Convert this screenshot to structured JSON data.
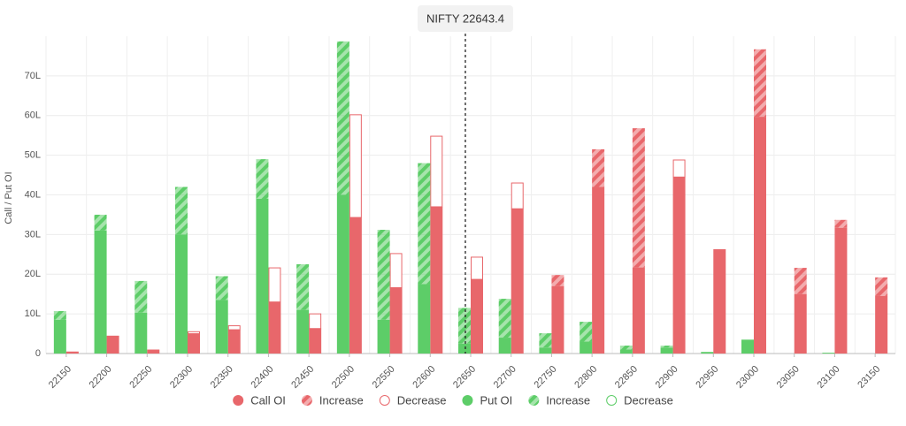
{
  "chart_data": {
    "type": "bar",
    "y_label": "Call / Put OI",
    "annotation": {
      "label": "NIFTY 22643.4",
      "value": 22643.4
    },
    "categories": [
      22150,
      22200,
      22250,
      22300,
      22350,
      22400,
      22450,
      22500,
      22550,
      22600,
      22650,
      22700,
      22750,
      22800,
      22850,
      22900,
      22950,
      23000,
      23050,
      23100,
      23150
    ],
    "series": [
      {
        "name": "Call OI",
        "stack": "call",
        "style": "solid",
        "color": "#e8676b",
        "values": [
          0.5,
          4.5,
          1,
          5,
          6,
          13,
          6.3,
          34.3,
          16.6,
          37,
          18.7,
          36.5,
          17,
          42,
          21.7,
          44.5,
          26.3,
          59.7,
          15,
          31.7,
          14.5
        ]
      },
      {
        "name": "Increase",
        "stack": "call",
        "style": "hatched",
        "color": "#e8676b",
        "values": [
          0,
          0,
          0,
          0,
          0,
          0,
          0,
          0,
          0,
          0,
          0,
          0,
          2.8,
          9.5,
          35.1,
          0,
          0,
          17,
          6.6,
          2,
          4.7
        ]
      },
      {
        "name": "Decrease",
        "stack": "call",
        "style": "outline",
        "color": "#e8676b",
        "values": [
          0,
          0,
          0,
          0.5,
          1,
          8.6,
          3.7,
          25.9,
          8.6,
          17.8,
          5.6,
          6.5,
          0,
          0,
          0,
          4.3,
          0,
          0,
          0,
          0,
          0
        ]
      },
      {
        "name": "Put OI",
        "stack": "put",
        "style": "solid",
        "color": "#5dcd68",
        "values": [
          8.5,
          31,
          10.3,
          30,
          13.5,
          39,
          11,
          40,
          8.5,
          17.5,
          2.5,
          4,
          1.5,
          3,
          1,
          1.5,
          0.4,
          3.5,
          0,
          0.2,
          0
        ]
      },
      {
        "name": "Increase",
        "stack": "put",
        "style": "hatched",
        "color": "#5dcd68",
        "values": [
          2.2,
          4,
          8,
          12,
          6,
          10,
          11.5,
          38.7,
          22.7,
          30.5,
          9,
          9.8,
          3.6,
          5,
          1,
          0.5,
          0,
          0,
          0,
          0,
          0
        ]
      },
      {
        "name": "Decrease",
        "stack": "put",
        "style": "outline",
        "color": "#5dcd68",
        "values": [
          0,
          0,
          0,
          0,
          0,
          0,
          0,
          0,
          0,
          0,
          0,
          0,
          0,
          0,
          0,
          0,
          0,
          0,
          0,
          0,
          0
        ]
      }
    ],
    "ylim": [
      0,
      80
    ],
    "yticks": [
      0,
      {
        "value": 10,
        "label": "10L"
      },
      {
        "value": 20,
        "label": "20L"
      },
      {
        "value": 30,
        "label": "30L"
      },
      {
        "value": 40,
        "label": "40L"
      },
      {
        "value": 50,
        "label": "50L"
      },
      {
        "value": 60,
        "label": "60L"
      },
      {
        "value": 70,
        "label": "70L"
      }
    ],
    "grid": true
  }
}
